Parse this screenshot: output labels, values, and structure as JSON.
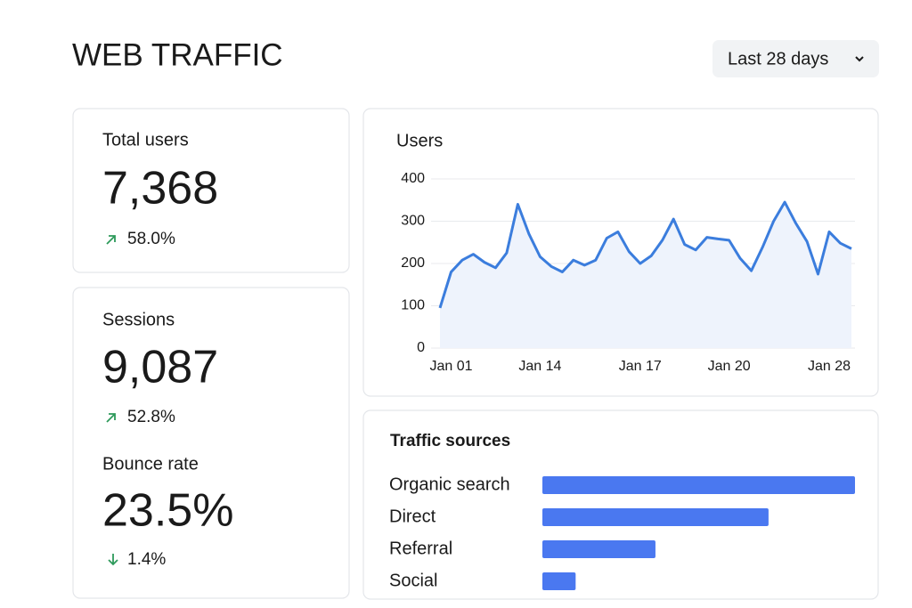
{
  "header": {
    "title": "WEB TRAFFIC",
    "range_selector": "Last 28 days"
  },
  "stats": [
    {
      "label": "Total users",
      "value": "7,368",
      "change": "58.0%"
    },
    {
      "label": "Sessions",
      "value": "9,087",
      "change": "52.8%"
    },
    {
      "label": "Bounce rate",
      "value": "23.5%",
      "change": "1.4%"
    }
  ],
  "chart_data": [
    {
      "type": "line",
      "title": "Users",
      "categories": [
        null,
        "Jan 01",
        null,
        null,
        null,
        null,
        null,
        null,
        null,
        "Jan 14",
        null,
        null,
        null,
        null,
        null,
        null,
        null,
        null,
        "Jan 17",
        null,
        null,
        null,
        null,
        null,
        null,
        null,
        "Jan 20",
        null,
        null,
        null,
        null,
        null,
        null,
        null,
        null,
        "Jan 28",
        null,
        null
      ],
      "values": [
        95,
        180,
        208,
        222,
        203,
        190,
        225,
        340,
        270,
        216,
        193,
        180,
        208,
        196,
        208,
        260,
        275,
        228,
        200,
        218,
        255,
        305,
        245,
        232,
        262,
        258,
        255,
        212,
        183,
        238,
        300,
        345,
        295,
        252,
        175,
        275,
        248,
        235
      ],
      "color": "#3b7ddd",
      "ylim": [
        0,
        400
      ],
      "yticks": [
        0,
        100,
        200,
        300,
        400
      ],
      "grid": true
    },
    {
      "type": "bar",
      "orientation": "horizontal",
      "title": "Traffic sources",
      "categories": [
        "Organic search",
        "Direct",
        "Referral",
        "Social"
      ],
      "values": [
        47,
        34,
        17,
        5
      ],
      "color": "#4a78f0"
    }
  ]
}
